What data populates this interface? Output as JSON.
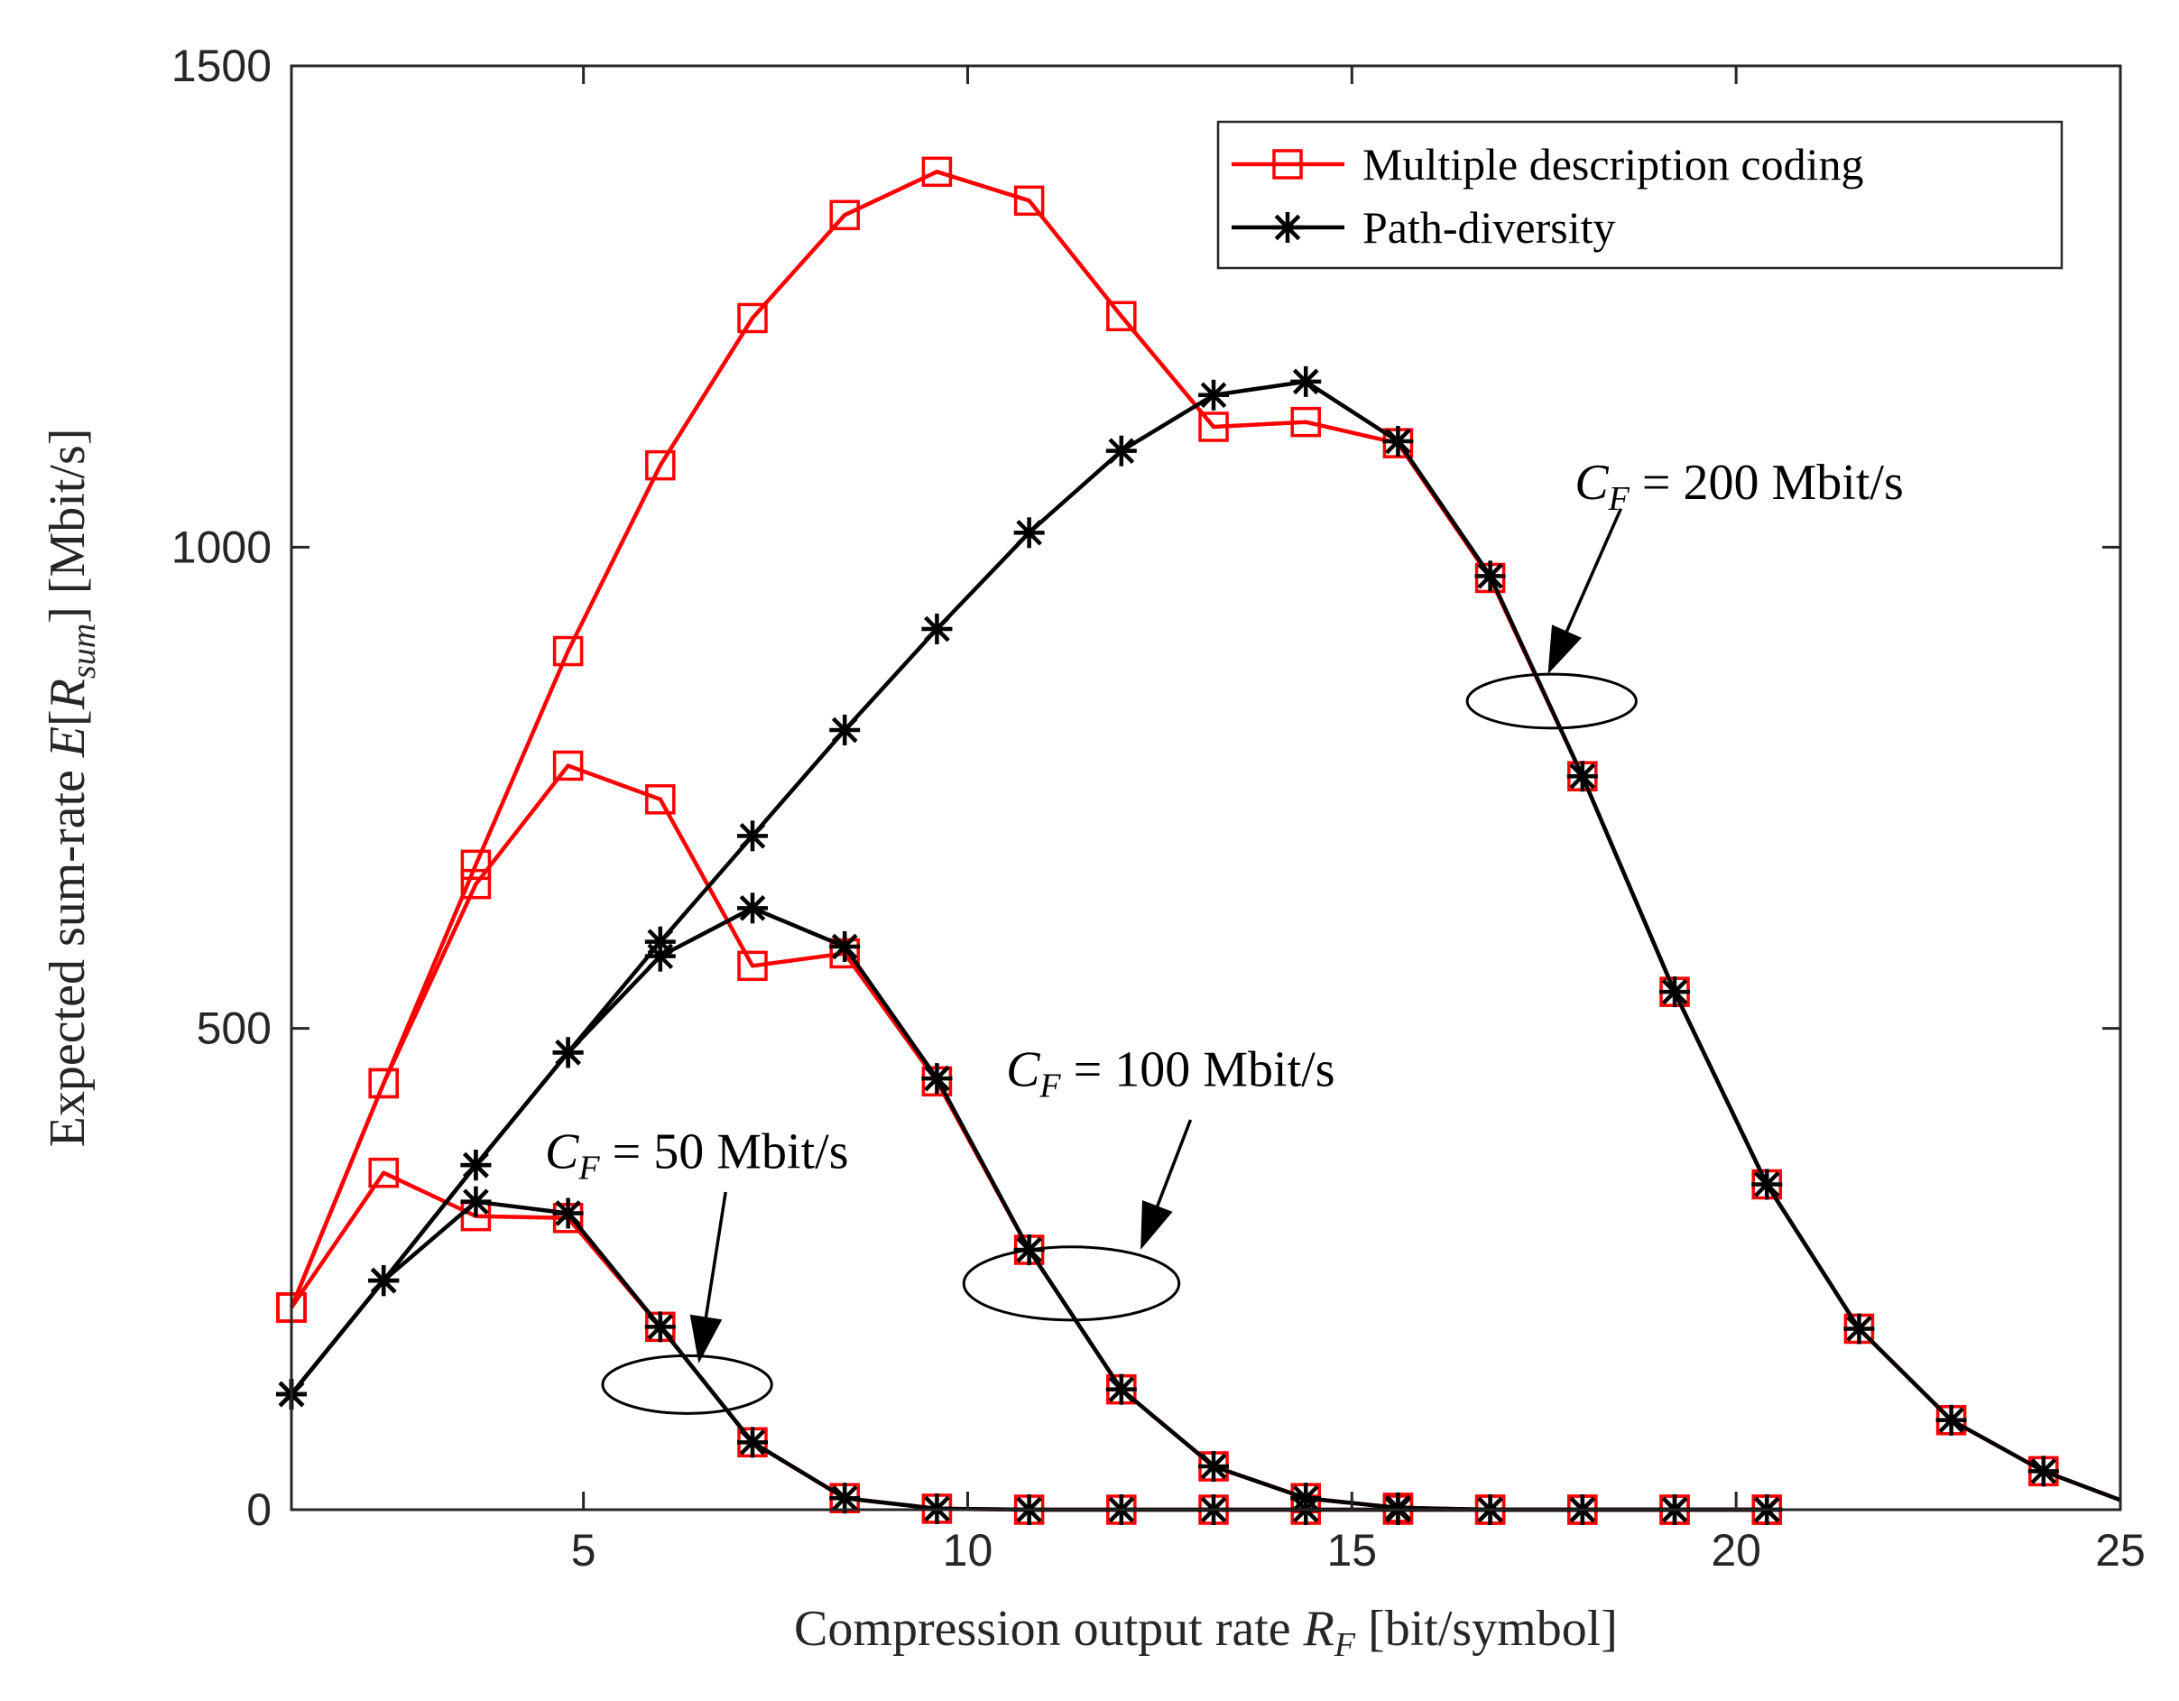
{
  "chart_data": {
    "type": "line",
    "title": "",
    "xlabel": {
      "prefix": "Compression output rate ",
      "symbol": "R",
      "subscript": "F",
      "suffix": " [bit/symbol]"
    },
    "ylabel": {
      "prefix": "Expected sum-rate ",
      "symbol": "E",
      "open": "[",
      "inner": "R",
      "subscript": "sum",
      "close": "]",
      "suffix": " [Mbit/s]"
    },
    "xlim": [
      1.2,
      25
    ],
    "ylim": [
      0,
      1500
    ],
    "xticks": [
      5,
      10,
      15,
      20,
      25
    ],
    "yticks": [
      0,
      500,
      1000,
      1500
    ],
    "grid": false,
    "legend_position": "top-right",
    "legend": [
      {
        "label": "Multiple description coding",
        "color": "#ff0000",
        "marker": "square"
      },
      {
        "label": "Path-diversity",
        "color": "#000000",
        "marker": "asterisk"
      }
    ],
    "series": [
      {
        "name": "Multiple description coding",
        "group": "CF=50",
        "color": "#ff0000",
        "marker": "square",
        "x": [
          1.2,
          2.4,
          3.6,
          4.8,
          6.0,
          7.2,
          8.4,
          9.6,
          10.8,
          12.0,
          13.2,
          14.4,
          15.6,
          16.8,
          18.0,
          19.2,
          20.4
        ],
        "y": [
          210,
          350,
          305,
          303,
          190,
          70,
          12,
          1,
          0,
          0,
          0,
          0,
          0,
          0,
          0,
          0,
          0
        ]
      },
      {
        "name": "Path-diversity",
        "group": "CF=50",
        "color": "#000000",
        "marker": "asterisk",
        "x": [
          1.2,
          2.4,
          3.6,
          4.8,
          6.0,
          7.2,
          8.4,
          9.6,
          10.8,
          12.0,
          13.2,
          14.4,
          15.6,
          16.8,
          18.0,
          19.2,
          20.4
        ],
        "y": [
          120,
          238,
          320,
          308,
          190,
          70,
          12,
          1,
          0,
          0,
          0,
          0,
          0,
          0,
          0,
          0,
          0
        ]
      },
      {
        "name": "Multiple description coding",
        "group": "CF=100",
        "color": "#ff0000",
        "marker": "square",
        "x": [
          1.2,
          2.4,
          3.6,
          4.8,
          6.0,
          7.2,
          8.4,
          9.6,
          10.8,
          12.0,
          13.2,
          14.4,
          15.6,
          16.8,
          18.0,
          19.2,
          20.4
        ],
        "y": [
          210,
          443,
          650,
          773,
          738,
          565,
          578,
          445,
          270,
          125,
          45,
          12,
          2,
          0,
          0,
          0,
          0
        ]
      },
      {
        "name": "Path-diversity",
        "group": "CF=100",
        "color": "#000000",
        "marker": "asterisk",
        "x": [
          1.2,
          2.4,
          3.6,
          4.8,
          6.0,
          7.2,
          8.4,
          9.6,
          10.8,
          12.0,
          13.2,
          14.4,
          15.6,
          16.8,
          18.0,
          19.2,
          20.4
        ],
        "y": [
          120,
          238,
          358,
          475,
          575,
          625,
          585,
          448,
          270,
          125,
          45,
          12,
          2,
          0,
          0,
          0,
          0
        ]
      },
      {
        "name": "Multiple description coding",
        "group": "CF=200",
        "color": "#ff0000",
        "marker": "square",
        "x": [
          1.2,
          2.4,
          3.6,
          4.8,
          6.0,
          7.2,
          8.4,
          9.6,
          10.8,
          12.0,
          13.2,
          14.4,
          15.6,
          16.8,
          18.0,
          19.2,
          20.4,
          21.6,
          22.8,
          24.0,
          25.0
        ],
        "y": [
          210,
          443,
          670,
          892,
          1085,
          1238,
          1345,
          1390,
          1360,
          1240,
          1125,
          1130,
          1108,
          968,
          762,
          538,
          338,
          188,
          93,
          40,
          10
        ]
      },
      {
        "name": "Path-diversity",
        "group": "CF=200",
        "color": "#000000",
        "marker": "asterisk",
        "x": [
          1.2,
          2.4,
          3.6,
          4.8,
          6.0,
          7.2,
          8.4,
          9.6,
          10.8,
          12.0,
          13.2,
          14.4,
          15.6,
          16.8,
          18.0,
          19.2,
          20.4,
          21.6,
          22.8,
          24.0,
          25.0
        ],
        "y": [
          120,
          238,
          358,
          475,
          590,
          700,
          810,
          915,
          1015,
          1100,
          1158,
          1172,
          1110,
          970,
          762,
          538,
          338,
          188,
          93,
          40,
          10
        ]
      }
    ],
    "marker_count": [
      17,
      17,
      17,
      17,
      20,
      20
    ],
    "annotations": [
      {
        "symbol": "C",
        "subscript": "F",
        "equals": " = ",
        "text": "50 Mbit/s",
        "ellipse_center": [
          6.35,
          130
        ],
        "ellipse_radius": [
          1.1,
          30
        ],
        "arrow_from": [
          6.85,
          330
        ],
        "arrow_to": [
          6.5,
          152
        ],
        "text_at": [
          4.5,
          355
        ]
      },
      {
        "symbol": "C",
        "subscript": "F",
        "equals": " = ",
        "text": "100 Mbit/s",
        "ellipse_center": [
          11.35,
          235
        ],
        "ellipse_radius": [
          1.4,
          38
        ],
        "arrow_from": [
          12.9,
          405
        ],
        "arrow_to": [
          12.25,
          270
        ],
        "text_at": [
          10.5,
          440
        ]
      },
      {
        "symbol": "C",
        "subscript": "F",
        "equals": " = ",
        "text": "200 Mbit/s",
        "ellipse_center": [
          17.6,
          840
        ],
        "ellipse_radius": [
          1.1,
          28
        ],
        "arrow_from": [
          18.5,
          1040
        ],
        "arrow_to": [
          17.55,
          868
        ],
        "text_at": [
          17.9,
          1050
        ]
      }
    ]
  }
}
